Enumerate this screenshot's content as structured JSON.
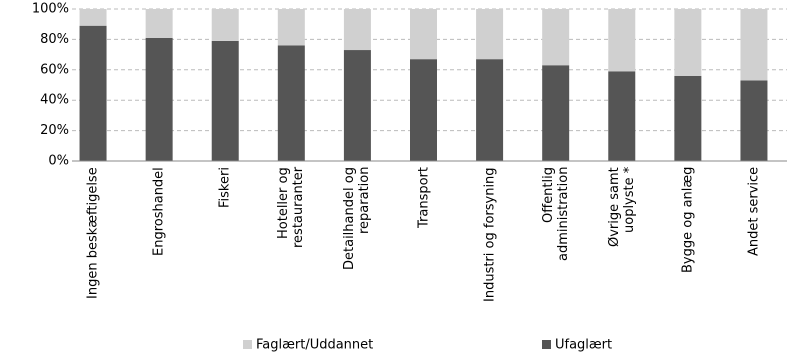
{
  "chart_data": {
    "type": "stacked_bar",
    "categories": [
      "Ingen beskæftigelse",
      "Engroshandel",
      "Fiskeri",
      "Hoteller og\nrestauranter",
      "Detailhandel og\nreparation",
      "Transport",
      "Industri og forsyning",
      "Offentlig\nadministration",
      "Øvrige samt\nuoplyste *",
      "Bygge og anlæg",
      "Andet service"
    ],
    "series": [
      {
        "name": "Faglært/Uddannet",
        "color": "#d0d0d0",
        "values": [
          11,
          19,
          21,
          24,
          27,
          33,
          33,
          37,
          41,
          44,
          47
        ]
      },
      {
        "name": "Ufaglært",
        "color": "#555555",
        "values": [
          89,
          81,
          79,
          76,
          73,
          67,
          67,
          63,
          59,
          56,
          53
        ]
      }
    ],
    "ylim": [
      0,
      100
    ],
    "yticks": [
      {
        "value": 0,
        "label": "0%"
      },
      {
        "value": 20,
        "label": "20%"
      },
      {
        "value": 40,
        "label": "40%"
      },
      {
        "value": 60,
        "label": "60%"
      },
      {
        "value": 80,
        "label": "80%"
      },
      {
        "value": 100,
        "label": "100%"
      }
    ],
    "grid": true,
    "legend": "bottom"
  }
}
